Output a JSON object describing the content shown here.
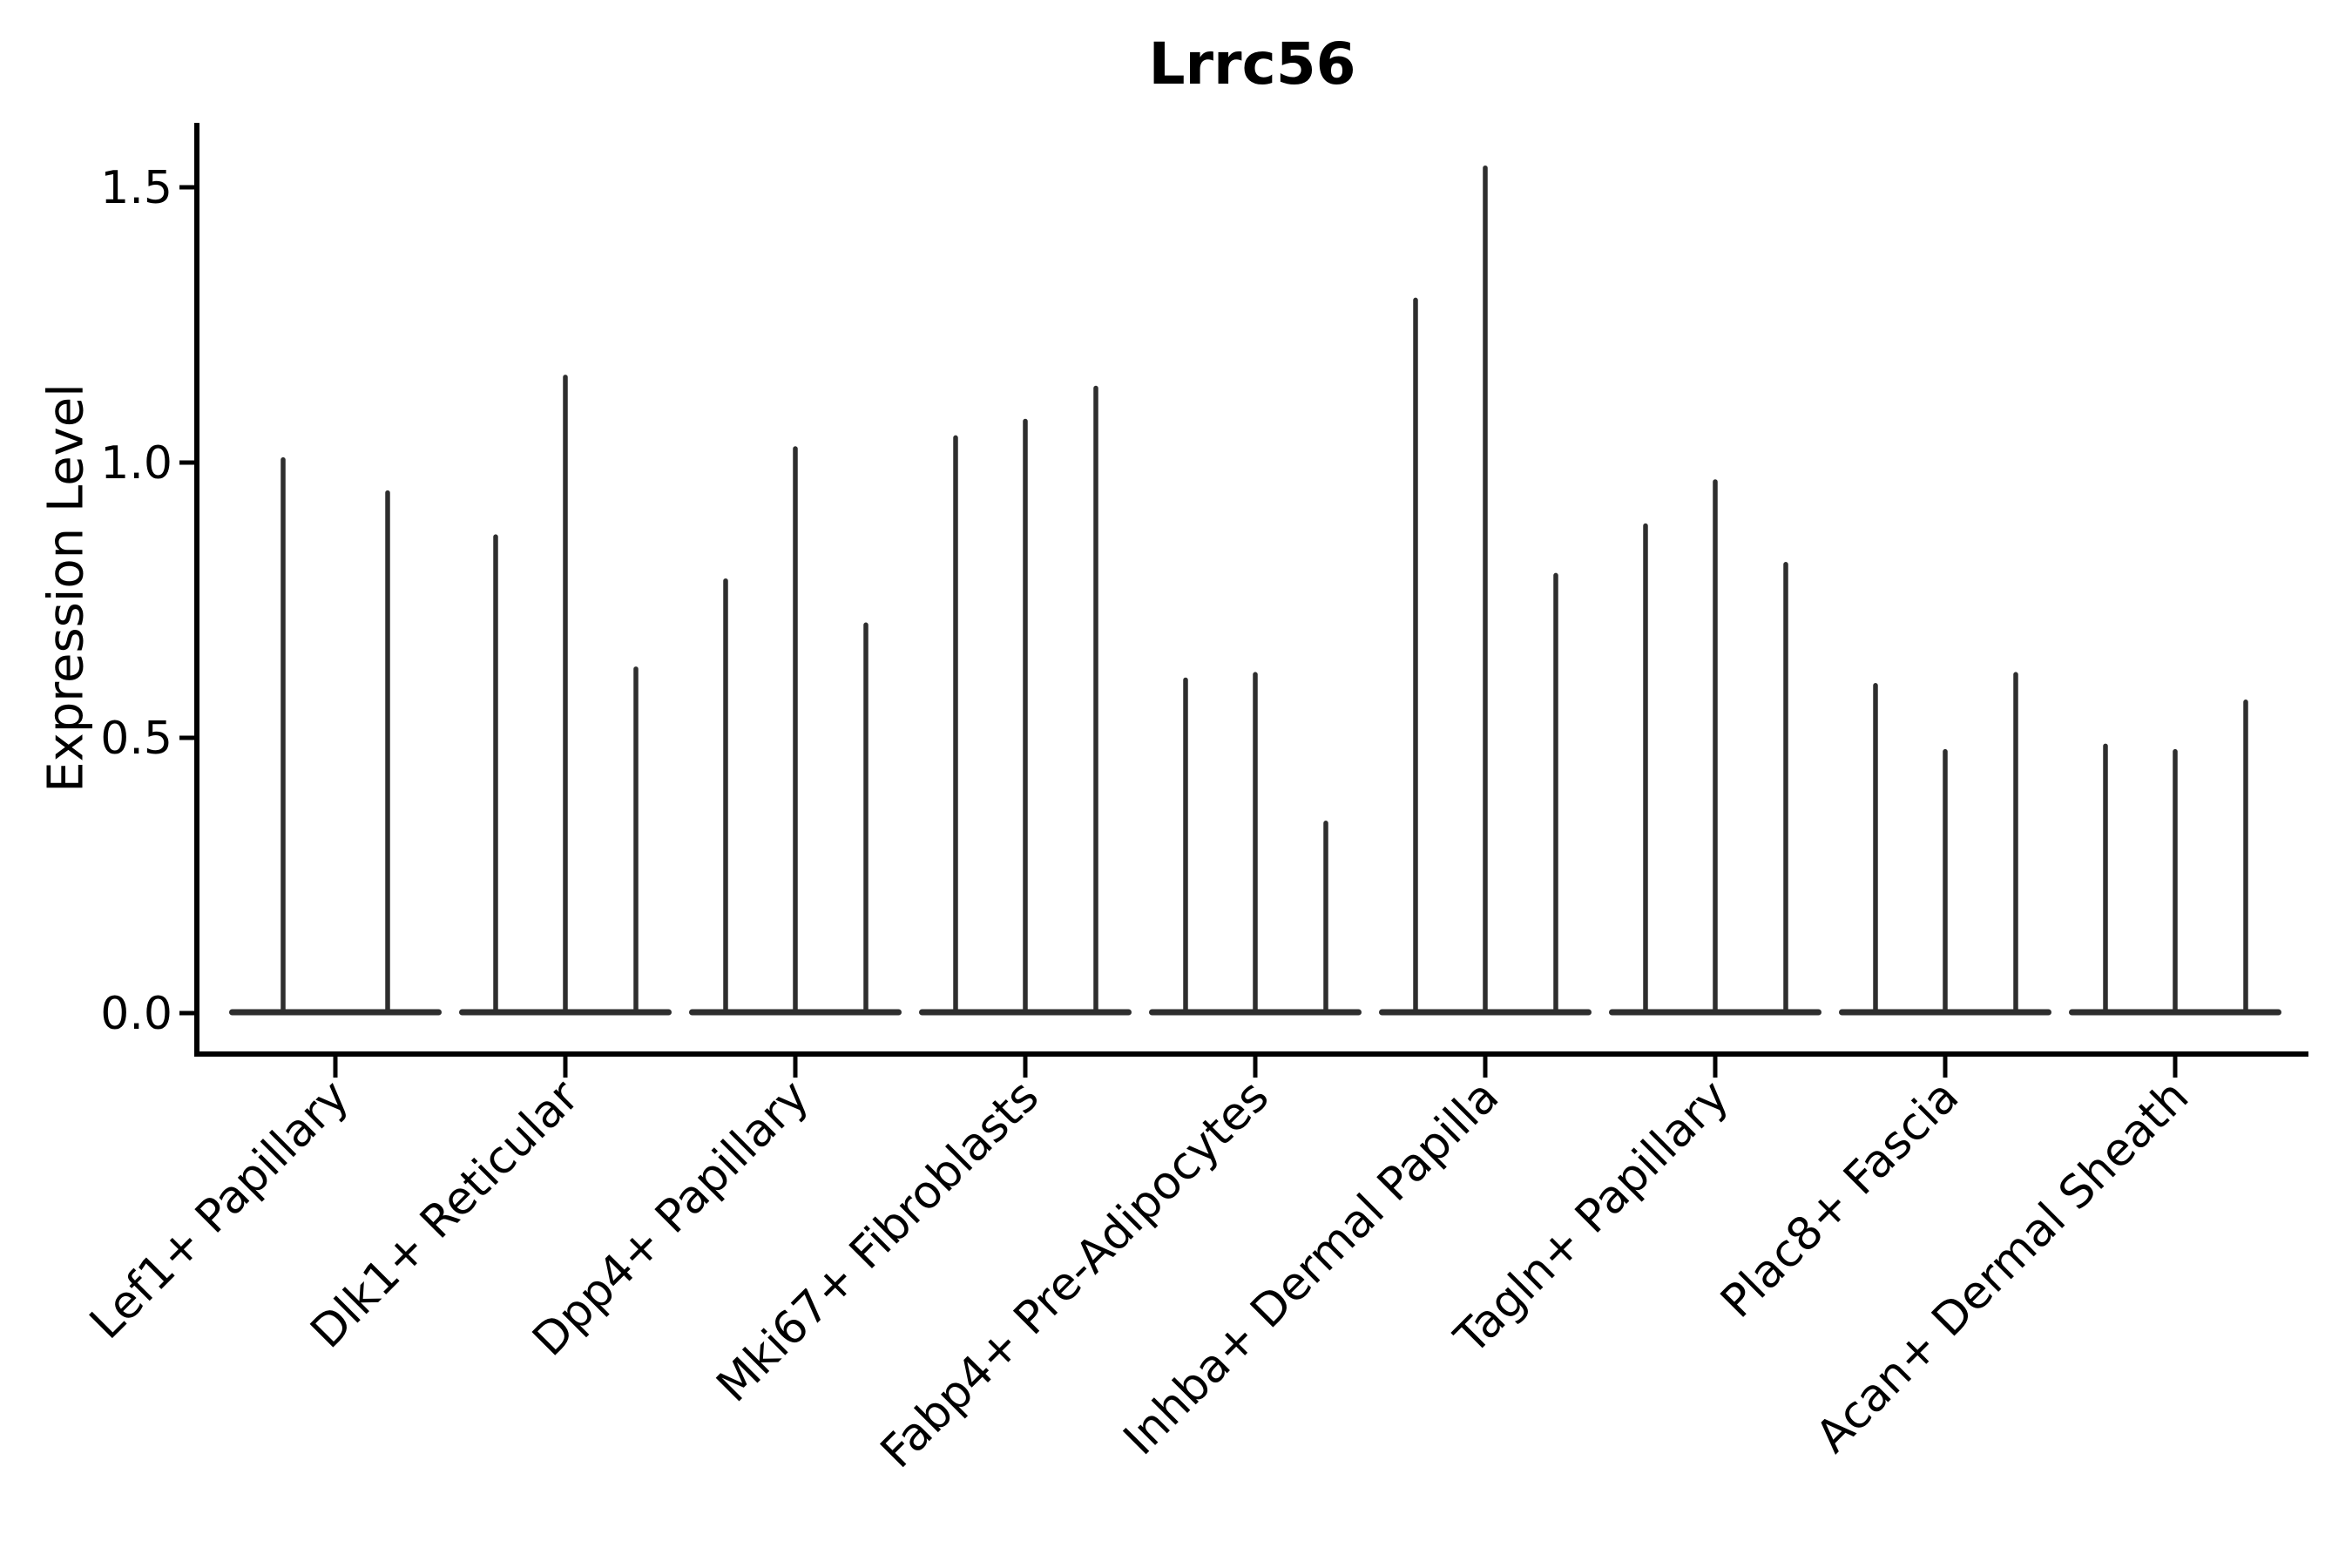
{
  "figure": {
    "title": "Lrrc56",
    "y_axis_title": "Expression Level"
  },
  "chart_data": {
    "type": "violin",
    "title": "Lrrc56",
    "xlabel": "",
    "ylabel": "Expression Level",
    "ylim": [
      0,
      1.62
    ],
    "yticks": [
      0.0,
      0.5,
      1.0,
      1.5
    ],
    "ytick_labels": [
      "0.0",
      "0.5",
      "1.0",
      "1.5"
    ],
    "grid": false,
    "legend": "none",
    "categories": [
      "Lef1+ Papillary",
      "Dlk1+ Reticular",
      "Dpp4+ Papillary",
      "Mki67+ Fibroblasts",
      "Fabp4+ Pre-Adipocytes",
      "Inhba+ Dermal Papilla",
      "Tagln+ Papillary",
      "Plac8+ Fascia",
      "Acan+ Dermal Sheath"
    ],
    "series": [
      {
        "category": "Lef1+ Papillary",
        "violin_max_values": [
          1.01,
          0.95
        ]
      },
      {
        "category": "Dlk1+ Reticular",
        "violin_max_values": [
          0.87,
          1.16,
          0.63
        ]
      },
      {
        "category": "Dpp4+ Papillary",
        "violin_max_values": [
          0.79,
          1.03,
          0.71
        ]
      },
      {
        "category": "Mki67+ Fibroblasts",
        "violin_max_values": [
          1.05,
          1.08,
          1.14
        ]
      },
      {
        "category": "Fabp4+ Pre-Adipocytes",
        "violin_max_values": [
          0.61,
          0.62,
          0.35
        ]
      },
      {
        "category": "Inhba+ Dermal Papilla",
        "violin_max_values": [
          1.3,
          1.54,
          0.8
        ]
      },
      {
        "category": "Tagln+ Papillary",
        "violin_max_values": [
          0.89,
          0.97,
          0.82
        ]
      },
      {
        "category": "Plac8+ Fascia",
        "violin_max_values": [
          0.6,
          0.48,
          0.62
        ]
      },
      {
        "category": "Acan+ Dermal Sheath",
        "violin_max_values": [
          0.49,
          0.48,
          0.57
        ]
      }
    ],
    "colors": {
      "violin": "#2e2e2e",
      "axis": "#000000",
      "text": "#000000",
      "background": "#ffffff"
    }
  }
}
